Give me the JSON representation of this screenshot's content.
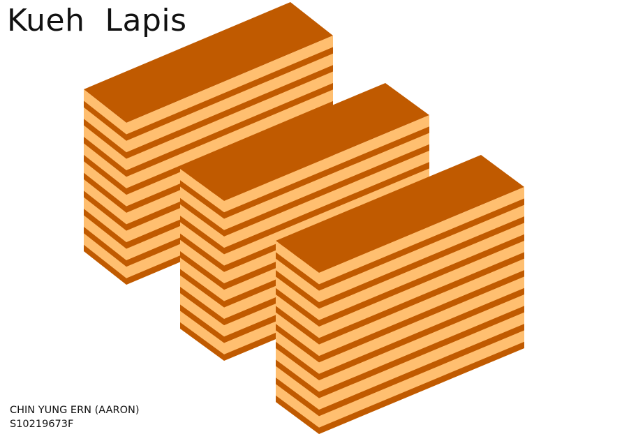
{
  "title": "Kueh  Lapis",
  "author": {
    "name": "CHIN YUNG ERN (AARON)",
    "student_id": "S10219673F"
  },
  "colors": {
    "top": "#c05a00",
    "layer_light": "#ffbf70",
    "layer_dark": "#c05a00"
  },
  "cakes": [
    {
      "name": "back-cake",
      "layers": 9
    },
    {
      "name": "middle-cake",
      "layers": 9
    },
    {
      "name": "front-cake",
      "layers": 9
    }
  ]
}
